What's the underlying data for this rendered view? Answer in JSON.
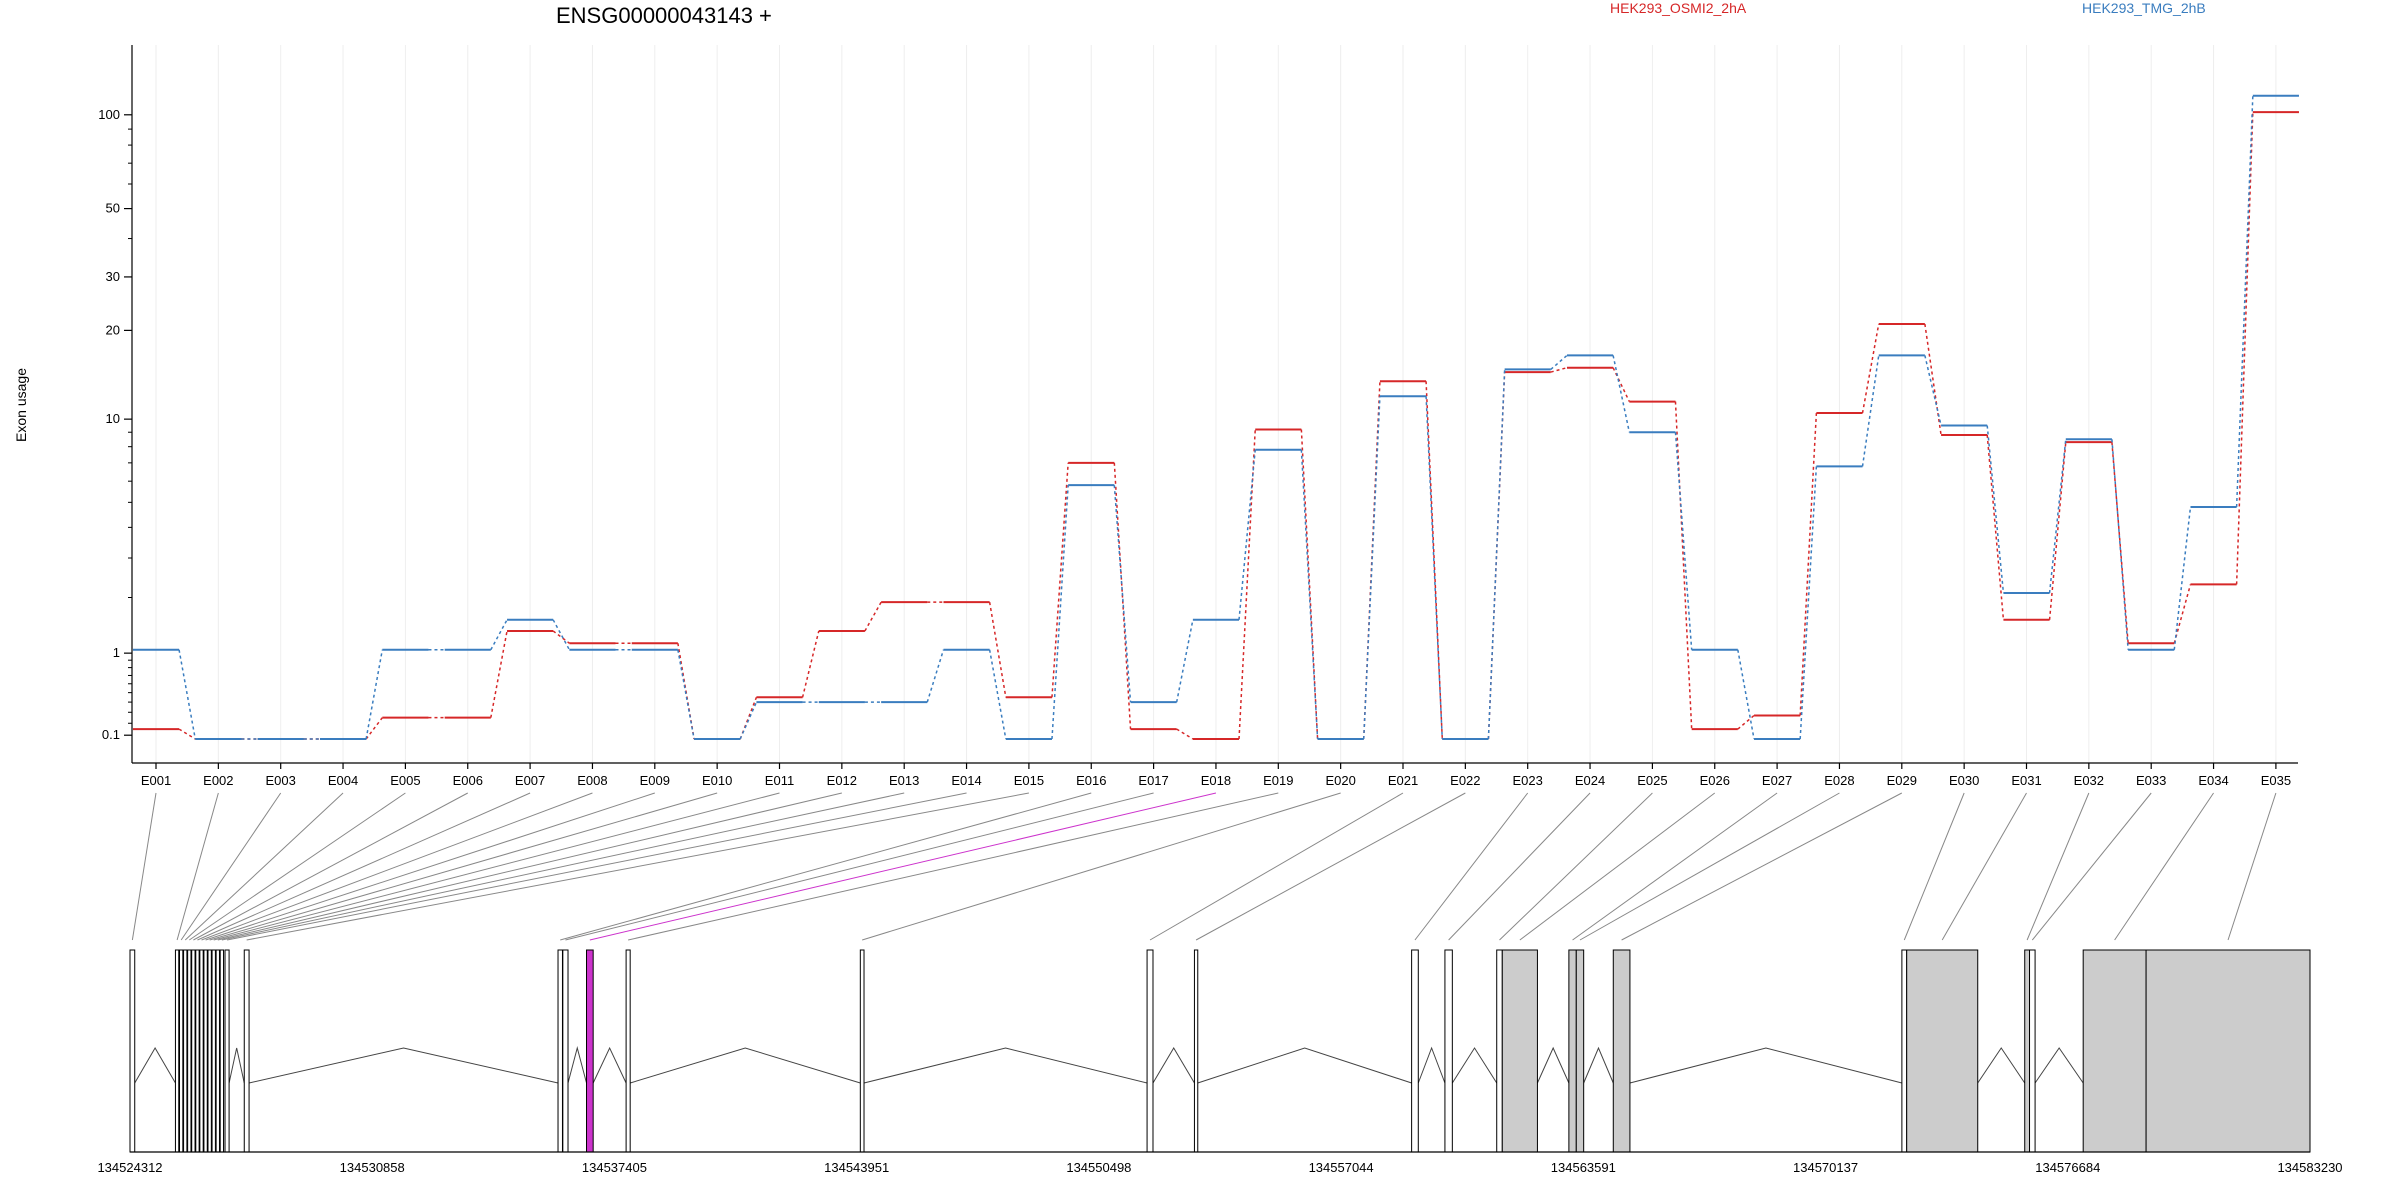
{
  "chart_data": {
    "type": "line",
    "title": "ENSG00000043143 +",
    "xlabel": "",
    "ylabel": "Exon usage",
    "y_scale": "log1p",
    "ylim": [
      0.07,
      140
    ],
    "y_ticks": [
      0.1,
      1,
      10,
      20,
      30,
      50,
      100
    ],
    "y_tick_labels": [
      "0.1",
      "1",
      "10",
      "20",
      "30",
      "50",
      "100"
    ],
    "grid": "vertical",
    "legend_position": "top",
    "categories": [
      "E001",
      "E002",
      "E003",
      "E004",
      "E005",
      "E006",
      "E007",
      "E008",
      "E009",
      "E010",
      "E011",
      "E012",
      "E013",
      "E014",
      "E015",
      "E016",
      "E017",
      "E018",
      "E019",
      "E020",
      "E021",
      "E022",
      "E023",
      "E024",
      "E025",
      "E026",
      "E027",
      "E028",
      "E029",
      "E030",
      "E031",
      "E032",
      "E033",
      "E034",
      "E035"
    ],
    "series": [
      {
        "name": "HEK293_OSMI2_2hA",
        "color": "#d62728",
        "values": [
          0.15,
          0.07,
          0.07,
          0.07,
          0.25,
          0.25,
          1.35,
          1.15,
          1.15,
          0.07,
          0.45,
          1.35,
          1.9,
          1.9,
          0.45,
          7.0,
          0.15,
          0.07,
          9.2,
          0.07,
          13.5,
          0.07,
          14.5,
          15.0,
          11.5,
          0.15,
          0.27,
          10.5,
          21.0,
          8.8,
          1.55,
          8.3,
          1.15,
          2.3,
          102
        ]
      },
      {
        "name": "HEK293_TMG_2hB",
        "color": "#3a7dbf",
        "values": [
          1.05,
          0.07,
          0.07,
          0.07,
          1.05,
          1.05,
          1.55,
          1.05,
          1.05,
          0.07,
          0.4,
          0.4,
          0.4,
          1.05,
          0.07,
          5.8,
          0.4,
          1.55,
          7.8,
          0.07,
          12.0,
          0.07,
          14.8,
          16.5,
          9.0,
          1.05,
          0.07,
          6.8,
          16.5,
          9.5,
          2.1,
          8.5,
          1.05,
          4.8,
          115
        ]
      }
    ],
    "highlighted_exons": [
      "E018"
    ],
    "highlight_color": "#cc33cc",
    "gene_model": {
      "coordinate_labels": [
        "134524312",
        "134530858",
        "134537405",
        "134543951",
        "134550498",
        "134557044",
        "134563591",
        "134570137",
        "134576684",
        "134583230"
      ],
      "coord_min": 134524312,
      "coord_max": 134583230,
      "exons": [
        {
          "id": "E001",
          "start": 134524312,
          "end": 134524440,
          "filled": false
        },
        {
          "id": "E002",
          "start": 134525540,
          "end": 134525630,
          "filled": false
        },
        {
          "id": "E003",
          "start": 134525650,
          "end": 134525740,
          "filled": false
        },
        {
          "id": "E004",
          "start": 134525760,
          "end": 134525850,
          "filled": false
        },
        {
          "id": "E005",
          "start": 134525870,
          "end": 134525960,
          "filled": false
        },
        {
          "id": "E006",
          "start": 134525980,
          "end": 134526070,
          "filled": false
        },
        {
          "id": "E007",
          "start": 134526090,
          "end": 134526180,
          "filled": false
        },
        {
          "id": "E008",
          "start": 134526200,
          "end": 134526290,
          "filled": false
        },
        {
          "id": "E009",
          "start": 134526310,
          "end": 134526400,
          "filled": false
        },
        {
          "id": "E010",
          "start": 134526420,
          "end": 134526510,
          "filled": false
        },
        {
          "id": "E011",
          "start": 134526530,
          "end": 134526620,
          "filled": false
        },
        {
          "id": "E012",
          "start": 134526640,
          "end": 134526730,
          "filled": false
        },
        {
          "id": "E013",
          "start": 134526750,
          "end": 134526840,
          "filled": false
        },
        {
          "id": "E014",
          "start": 134526880,
          "end": 134526990,
          "filled": false
        },
        {
          "id": "E015",
          "start": 134527400,
          "end": 134527530,
          "filled": false
        },
        {
          "id": "E016",
          "start": 134535880,
          "end": 134536000,
          "filled": false
        },
        {
          "id": "E017",
          "start": 134536010,
          "end": 134536150,
          "filled": false
        },
        {
          "id": "E018",
          "start": 134536650,
          "end": 134536830,
          "filled": true,
          "highlight": true
        },
        {
          "id": "E019",
          "start": 134537720,
          "end": 134537830,
          "filled": false
        },
        {
          "id": "E020",
          "start": 134544050,
          "end": 134544150,
          "filled": false
        },
        {
          "id": "E021",
          "start": 134551800,
          "end": 134551960,
          "filled": false
        },
        {
          "id": "E022",
          "start": 134553080,
          "end": 134553170,
          "filled": false
        },
        {
          "id": "E023",
          "start": 134558950,
          "end": 134559130,
          "filled": false
        },
        {
          "id": "E024",
          "start": 134559850,
          "end": 134560050,
          "filled": false
        },
        {
          "id": "E025",
          "start": 134561250,
          "end": 134561400,
          "filled": false
        },
        {
          "id": "E026",
          "start": 134561400,
          "end": 134562350,
          "filled": true
        },
        {
          "id": "E027",
          "start": 134563200,
          "end": 134563400,
          "filled": true
        },
        {
          "id": "E028",
          "start": 134563400,
          "end": 134563600,
          "filled": true
        },
        {
          "id": "E029",
          "start": 134564400,
          "end": 134564850,
          "filled": true
        },
        {
          "id": "E030",
          "start": 134572200,
          "end": 134572330,
          "filled": false
        },
        {
          "id": "E031",
          "start": 134572330,
          "end": 134574250,
          "filled": true
        },
        {
          "id": "E032",
          "start": 134575520,
          "end": 134575650,
          "filled": true
        },
        {
          "id": "E033",
          "start": 134575650,
          "end": 134575800,
          "filled": false
        },
        {
          "id": "E034",
          "start": 134577100,
          "end": 134578800,
          "filled": true
        },
        {
          "id": "E035",
          "start": 134578800,
          "end": 134583230,
          "filled": true
        }
      ]
    }
  }
}
